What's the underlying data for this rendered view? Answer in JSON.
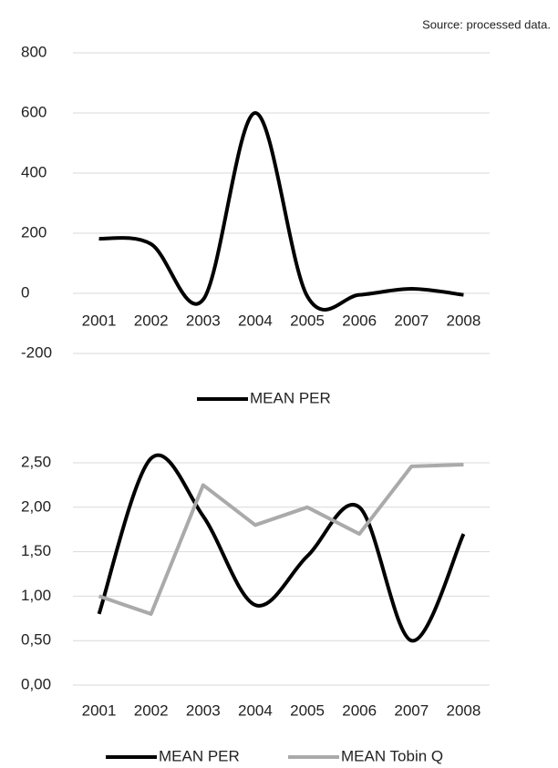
{
  "source": "Source: processed data.",
  "chart_data": [
    {
      "type": "line",
      "smooth": true,
      "legend": "bottom",
      "grid": true,
      "categories": [
        "2001",
        "2002",
        "2003",
        "2004",
        "2005",
        "2006",
        "2007",
        "2008"
      ],
      "ylim": [
        -200,
        800
      ],
      "yticks": [
        -200,
        0,
        200,
        400,
        600,
        800
      ],
      "series": [
        {
          "name": "MEAN PER",
          "color": "#000000",
          "values": [
            182,
            164,
            -21,
            600,
            -10,
            -5,
            15,
            -5
          ]
        }
      ]
    },
    {
      "type": "line",
      "legend": "bottom",
      "grid": true,
      "categories": [
        "2001",
        "2002",
        "2003",
        "2004",
        "2005",
        "2006",
        "2007",
        "2008"
      ],
      "ylim": [
        0,
        2.5
      ],
      "yticks": [
        {
          "value": 0,
          "label": "0,00"
        },
        {
          "value": 0.5,
          "label": "0,50"
        },
        {
          "value": 1,
          "label": "1,00"
        },
        {
          "value": 1.5,
          "label": "1,50"
        },
        {
          "value": 2,
          "label": "2,00"
        },
        {
          "value": 2.5,
          "label": "2,50"
        }
      ],
      "series": [
        {
          "name": "MEAN PER",
          "color": "#000000",
          "smooth": true,
          "values": [
            0.8,
            2.55,
            1.9,
            0.9,
            1.45,
            2.0,
            0.5,
            1.7
          ]
        },
        {
          "name": "MEAN Tobin Q",
          "color": "#aaaaaa",
          "smooth": false,
          "values": [
            1.0,
            0.8,
            2.25,
            1.8,
            2.0,
            1.7,
            2.46,
            2.48
          ]
        }
      ]
    }
  ]
}
